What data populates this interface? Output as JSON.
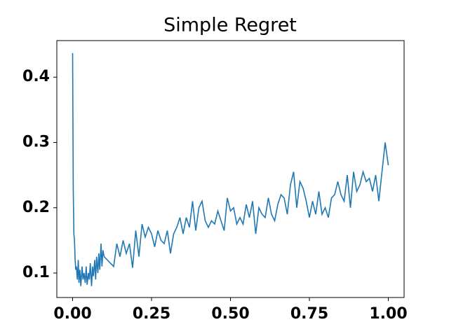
{
  "chart_data": {
    "type": "line",
    "title": "Simple Regret",
    "x": [
      0,
      0.002,
      0.004,
      0.006,
      0.008,
      0.01,
      0.012,
      0.015,
      0.018,
      0.02,
      0.023,
      0.026,
      0.03,
      0.033,
      0.036,
      0.04,
      0.043,
      0.046,
      0.05,
      0.053,
      0.056,
      0.06,
      0.063,
      0.066,
      0.07,
      0.073,
      0.076,
      0.08,
      0.083,
      0.086,
      0.09,
      0.093,
      0.096,
      0.1,
      0.11,
      0.12,
      0.13,
      0.14,
      0.15,
      0.16,
      0.17,
      0.18,
      0.19,
      0.2,
      0.21,
      0.22,
      0.23,
      0.24,
      0.25,
      0.26,
      0.27,
      0.28,
      0.29,
      0.3,
      0.31,
      0.32,
      0.33,
      0.34,
      0.35,
      0.36,
      0.37,
      0.38,
      0.39,
      0.4,
      0.41,
      0.42,
      0.43,
      0.44,
      0.45,
      0.46,
      0.47,
      0.48,
      0.49,
      0.5,
      0.51,
      0.52,
      0.53,
      0.54,
      0.55,
      0.56,
      0.57,
      0.58,
      0.59,
      0.6,
      0.61,
      0.62,
      0.63,
      0.64,
      0.65,
      0.66,
      0.67,
      0.68,
      0.69,
      0.7,
      0.71,
      0.72,
      0.73,
      0.74,
      0.75,
      0.76,
      0.77,
      0.78,
      0.79,
      0.8,
      0.81,
      0.82,
      0.83,
      0.84,
      0.85,
      0.86,
      0.87,
      0.88,
      0.89,
      0.9,
      0.91,
      0.92,
      0.93,
      0.94,
      0.95,
      0.96,
      0.97,
      0.98,
      0.99,
      1.0
    ],
    "series": [
      {
        "color": "#1f77b4",
        "values": [
          0.437,
          0.23,
          0.16,
          0.15,
          0.12,
          0.105,
          0.11,
          0.09,
          0.12,
          0.085,
          0.105,
          0.08,
          0.11,
          0.09,
          0.1,
          0.085,
          0.11,
          0.082,
          0.1,
          0.09,
          0.115,
          0.08,
          0.11,
          0.095,
          0.12,
          0.09,
          0.125,
          0.1,
          0.13,
          0.105,
          0.145,
          0.11,
          0.135,
          0.125,
          0.12,
          0.115,
          0.11,
          0.145,
          0.125,
          0.15,
          0.13,
          0.145,
          0.108,
          0.165,
          0.125,
          0.175,
          0.155,
          0.17,
          0.16,
          0.14,
          0.165,
          0.15,
          0.145,
          0.165,
          0.13,
          0.16,
          0.17,
          0.185,
          0.16,
          0.185,
          0.17,
          0.21,
          0.165,
          0.2,
          0.21,
          0.18,
          0.17,
          0.18,
          0.175,
          0.195,
          0.18,
          0.165,
          0.215,
          0.195,
          0.2,
          0.175,
          0.185,
          0.175,
          0.205,
          0.185,
          0.21,
          0.16,
          0.2,
          0.19,
          0.185,
          0.215,
          0.19,
          0.18,
          0.205,
          0.22,
          0.215,
          0.19,
          0.235,
          0.255,
          0.2,
          0.24,
          0.23,
          0.21,
          0.185,
          0.21,
          0.19,
          0.225,
          0.19,
          0.2,
          0.185,
          0.215,
          0.22,
          0.24,
          0.22,
          0.21,
          0.25,
          0.2,
          0.255,
          0.225,
          0.235,
          0.255,
          0.24,
          0.245,
          0.225,
          0.25,
          0.21,
          0.255,
          0.3,
          0.265
        ]
      }
    ],
    "xlim": [
      -0.05,
      1.05
    ],
    "ylim": [
      0.0625,
      0.456
    ],
    "xticks": [
      {
        "value": 0,
        "label": "0.00"
      },
      {
        "value": 0.25,
        "label": "0.25"
      },
      {
        "value": 0.5,
        "label": "0.50"
      },
      {
        "value": 0.75,
        "label": "0.75"
      },
      {
        "value": 1,
        "label": "1.00"
      }
    ],
    "yticks": [
      0.1,
      0.2,
      0.3,
      0.4
    ]
  }
}
